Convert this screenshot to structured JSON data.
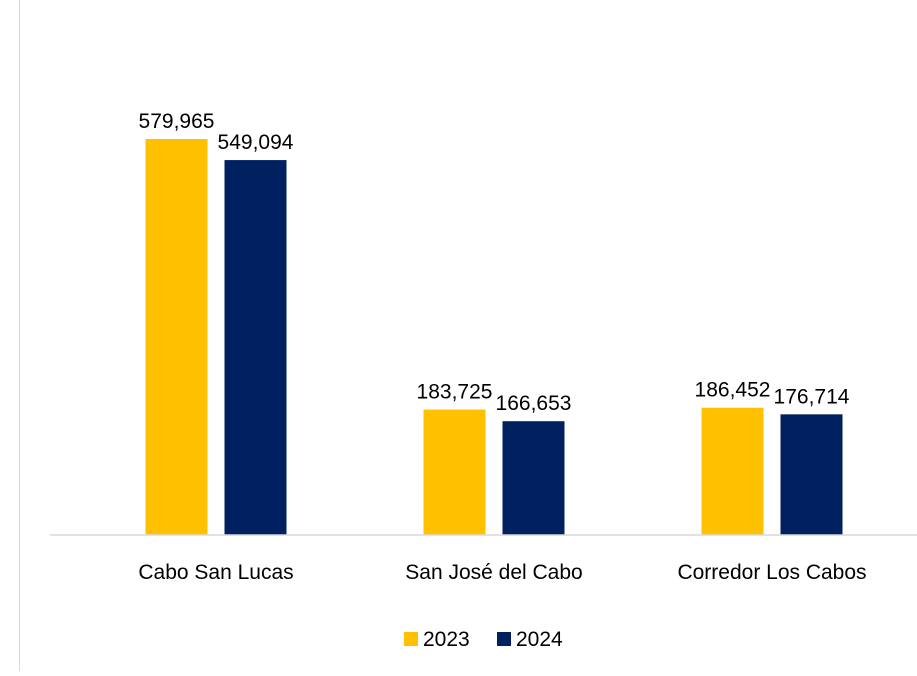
{
  "chart_data": {
    "type": "bar",
    "categories": [
      "Cabo San Lucas",
      "San José del Cabo",
      "Corredor Los Cabos"
    ],
    "series": [
      {
        "name": "2023",
        "color": "#FFC000",
        "values": [
          579965,
          183725,
          186452
        ],
        "labels": [
          "579,965",
          "183,725",
          "186,452"
        ]
      },
      {
        "name": "2024",
        "color": "#002060",
        "values": [
          549094,
          166653,
          176714
        ],
        "labels": [
          "549,094",
          "166,653",
          "176,714"
        ]
      }
    ],
    "ylim": [
      0,
      579965
    ],
    "grid": false,
    "legend": "bottom-center",
    "colors": {
      "axis": "#d9d9d9",
      "text": "#000000"
    }
  }
}
